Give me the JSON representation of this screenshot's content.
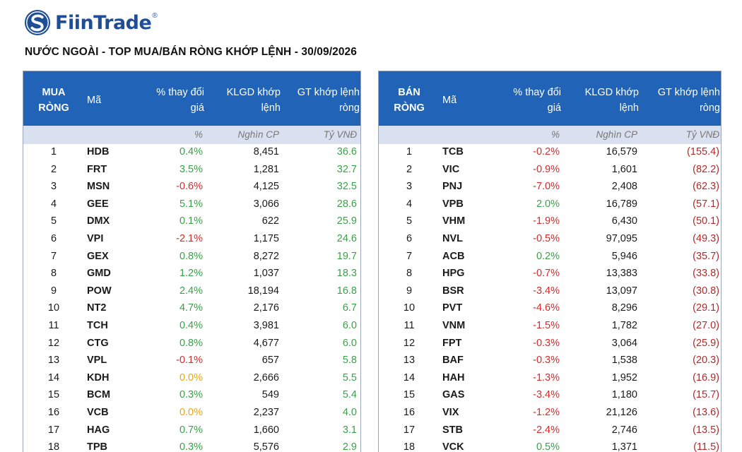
{
  "brand": {
    "name": "FiinTrade",
    "reg": "®"
  },
  "title": "NƯỚC NGOÀI - TOP MUA/BÁN RÒNG KHỚP LỆNH - 30/09/2026",
  "colors": {
    "header_bg": "#2063b7",
    "units_bg": "#d9e1f0",
    "positive": "#3aa14a",
    "negative": "#d62b2b",
    "zero": "#e6a817"
  },
  "buy": {
    "header": {
      "side_line1": "MUA",
      "side_line2": "RÒNG",
      "ma": "Mã",
      "pct_line1": "% thay đổi",
      "pct_line2": "giá",
      "klgd_line1": "KLGD khớp",
      "klgd_line2": "lệnh",
      "gt_line1": "GT khớp lệnh",
      "gt_line2": "ròng"
    },
    "units": {
      "pct": "%",
      "klgd": "Nghìn CP",
      "gt": "Tỷ VNĐ"
    },
    "rows": [
      {
        "rank": "1",
        "ma": "HDB",
        "pct": "0.4%",
        "klgd": "8,451",
        "gt": "36.6"
      },
      {
        "rank": "2",
        "ma": "FRT",
        "pct": "3.5%",
        "klgd": "1,281",
        "gt": "32.7"
      },
      {
        "rank": "3",
        "ma": "MSN",
        "pct": "-0.6%",
        "klgd": "4,125",
        "gt": "32.5"
      },
      {
        "rank": "4",
        "ma": "GEE",
        "pct": "5.1%",
        "klgd": "3,066",
        "gt": "28.6"
      },
      {
        "rank": "5",
        "ma": "DMX",
        "pct": "0.1%",
        "klgd": "622",
        "gt": "25.9"
      },
      {
        "rank": "6",
        "ma": "VPI",
        "pct": "-2.1%",
        "klgd": "1,175",
        "gt": "24.6"
      },
      {
        "rank": "7",
        "ma": "GEX",
        "pct": "0.8%",
        "klgd": "8,272",
        "gt": "19.7"
      },
      {
        "rank": "8",
        "ma": "GMD",
        "pct": "1.2%",
        "klgd": "1,037",
        "gt": "18.3"
      },
      {
        "rank": "9",
        "ma": "POW",
        "pct": "2.4%",
        "klgd": "18,194",
        "gt": "16.8"
      },
      {
        "rank": "10",
        "ma": "NT2",
        "pct": "4.7%",
        "klgd": "2,176",
        "gt": "6.7"
      },
      {
        "rank": "11",
        "ma": "TCH",
        "pct": "0.4%",
        "klgd": "3,981",
        "gt": "6.0"
      },
      {
        "rank": "12",
        "ma": "CTG",
        "pct": "0.8%",
        "klgd": "4,677",
        "gt": "6.0"
      },
      {
        "rank": "13",
        "ma": "VPL",
        "pct": "-0.1%",
        "klgd": "657",
        "gt": "5.8"
      },
      {
        "rank": "14",
        "ma": "KDH",
        "pct": "0.0%",
        "klgd": "2,666",
        "gt": "5.5"
      },
      {
        "rank": "15",
        "ma": "BCM",
        "pct": "0.3%",
        "klgd": "549",
        "gt": "5.4"
      },
      {
        "rank": "16",
        "ma": "VCB",
        "pct": "0.0%",
        "klgd": "2,237",
        "gt": "4.0"
      },
      {
        "rank": "17",
        "ma": "HAG",
        "pct": "0.7%",
        "klgd": "1,660",
        "gt": "3.1"
      },
      {
        "rank": "18",
        "ma": "TPB",
        "pct": "0.3%",
        "klgd": "5,576",
        "gt": "2.9"
      }
    ]
  },
  "sell": {
    "header": {
      "side_line1": "BÁN",
      "side_line2": "RÒNG",
      "ma": "Mã",
      "pct_line1": "% thay đổi",
      "pct_line2": "giá",
      "klgd_line1": "KLGD khớp",
      "klgd_line2": "lệnh",
      "gt_line1": "GT khớp lệnh",
      "gt_line2": "ròng"
    },
    "units": {
      "pct": "%",
      "klgd": "Nghìn CP",
      "gt": "Tỷ VNĐ"
    },
    "rows": [
      {
        "rank": "1",
        "ma": "TCB",
        "pct": "-0.2%",
        "klgd": "16,579",
        "gt": "(155.4)"
      },
      {
        "rank": "2",
        "ma": "VIC",
        "pct": "-0.9%",
        "klgd": "1,601",
        "gt": "(82.2)"
      },
      {
        "rank": "3",
        "ma": "PNJ",
        "pct": "-7.0%",
        "klgd": "2,408",
        "gt": "(62.3)"
      },
      {
        "rank": "4",
        "ma": "VPB",
        "pct": "2.0%",
        "klgd": "16,789",
        "gt": "(57.1)"
      },
      {
        "rank": "5",
        "ma": "VHM",
        "pct": "-1.9%",
        "klgd": "6,430",
        "gt": "(50.1)"
      },
      {
        "rank": "6",
        "ma": "NVL",
        "pct": "-0.5%",
        "klgd": "97,095",
        "gt": "(49.3)"
      },
      {
        "rank": "7",
        "ma": "ACB",
        "pct": "0.2%",
        "klgd": "5,946",
        "gt": "(35.7)"
      },
      {
        "rank": "8",
        "ma": "HPG",
        "pct": "-0.7%",
        "klgd": "13,383",
        "gt": "(33.8)"
      },
      {
        "rank": "9",
        "ma": "BSR",
        "pct": "-3.4%",
        "klgd": "13,097",
        "gt": "(30.8)"
      },
      {
        "rank": "10",
        "ma": "PVT",
        "pct": "-4.6%",
        "klgd": "8,296",
        "gt": "(29.1)"
      },
      {
        "rank": "11",
        "ma": "VNM",
        "pct": "-1.5%",
        "klgd": "1,782",
        "gt": "(27.0)"
      },
      {
        "rank": "12",
        "ma": "FPT",
        "pct": "-0.3%",
        "klgd": "3,064",
        "gt": "(25.9)"
      },
      {
        "rank": "13",
        "ma": "BAF",
        "pct": "-0.3%",
        "klgd": "1,538",
        "gt": "(20.3)"
      },
      {
        "rank": "14",
        "ma": "HAH",
        "pct": "-1.3%",
        "klgd": "1,952",
        "gt": "(16.9)"
      },
      {
        "rank": "15",
        "ma": "GAS",
        "pct": "-3.4%",
        "klgd": "1,180",
        "gt": "(15.7)"
      },
      {
        "rank": "16",
        "ma": "VIX",
        "pct": "-1.2%",
        "klgd": "21,126",
        "gt": "(13.6)"
      },
      {
        "rank": "17",
        "ma": "STB",
        "pct": "-2.4%",
        "klgd": "2,746",
        "gt": "(13.5)"
      },
      {
        "rank": "18",
        "ma": "VCK",
        "pct": "0.5%",
        "klgd": "1,371",
        "gt": "(11.5)"
      }
    ]
  }
}
